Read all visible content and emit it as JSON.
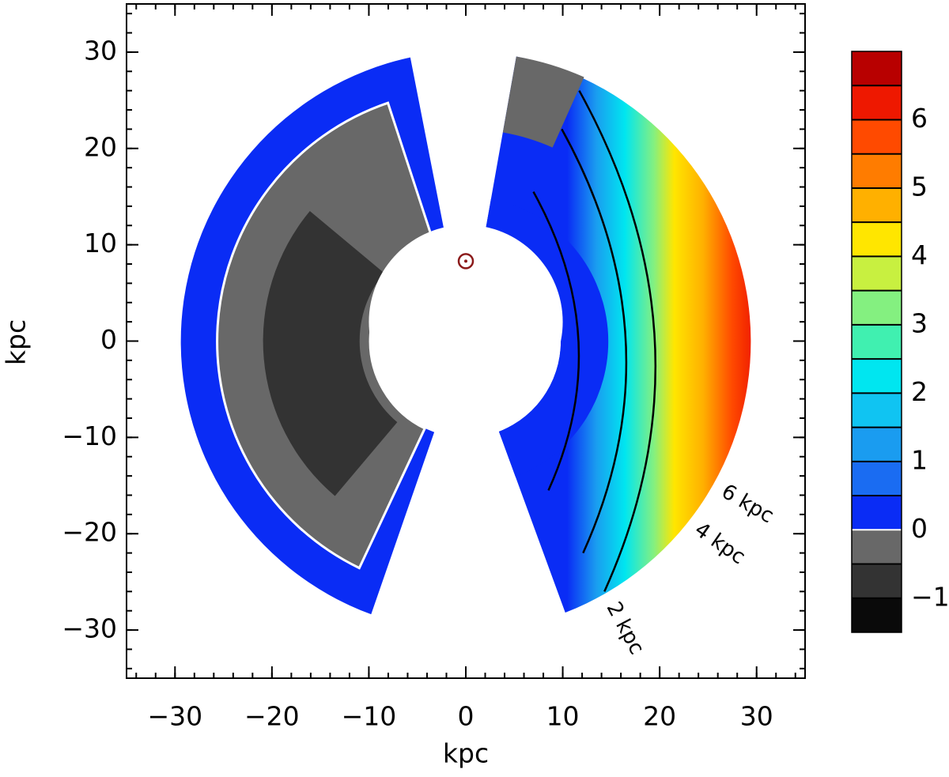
{
  "chart_data": {
    "type": "contour",
    "xlabel": "kpc",
    "ylabel": "kpc",
    "xlim": [
      -35,
      35
    ],
    "ylim": [
      -35,
      35
    ],
    "xticks": [
      {
        "value": -30,
        "label": "−30"
      },
      {
        "value": -20,
        "label": "−20"
      },
      {
        "value": -10,
        "label": "−10"
      },
      0,
      10,
      20,
      30
    ],
    "yticks": [
      {
        "value": -30,
        "label": "−30"
      },
      {
        "value": -20,
        "label": "−20"
      },
      {
        "value": -10,
        "label": "−10"
      },
      0,
      10,
      20,
      30
    ],
    "sun_position": [
      0,
      8.3
    ],
    "contour_labels": [
      "2 kpc",
      "4 kpc",
      "6 kpc"
    ],
    "colorbar": {
      "levels": [
        -1.5,
        -1,
        -0.5,
        0,
        0.5,
        1,
        1.5,
        2,
        2.5,
        3,
        3.5,
        4,
        4.5,
        5,
        5.5,
        6,
        6.5,
        7
      ],
      "colors": [
        "#0a0a0a",
        "#333333",
        "#686868",
        "#0a2cf5",
        "#1a6cf2",
        "#1a9cf0",
        "#10c4f2",
        "#00e6f0",
        "#40f0b0",
        "#84f080",
        "#c8f040",
        "#ffe600",
        "#ffb000",
        "#ff7c00",
        "#ff4a00",
        "#ee1800",
        "#b80000"
      ],
      "ticks": [
        {
          "value": -1,
          "label": "−1"
        },
        0,
        1,
        2,
        3,
        4,
        5,
        6
      ]
    }
  }
}
